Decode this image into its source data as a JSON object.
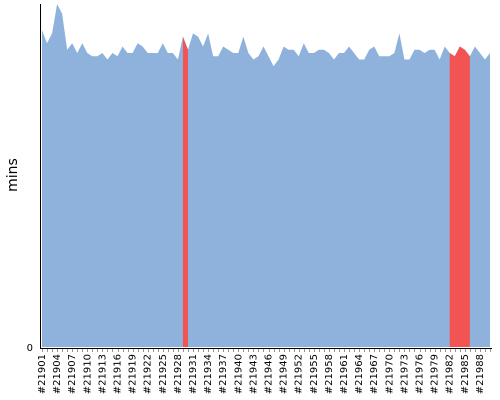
{
  "chart_data": {
    "type": "area",
    "title": "",
    "xlabel": "",
    "ylabel": "mins",
    "y_tick_labels": [
      "0"
    ],
    "x_tick_labels": [
      "#21901",
      "#21904",
      "#21907",
      "#21910",
      "#21913",
      "#21916",
      "#21919",
      "#21922",
      "#21925",
      "#21928",
      "#21931",
      "#21934",
      "#21937",
      "#21940",
      "#21943",
      "#21946",
      "#21949",
      "#21952",
      "#21955",
      "#21958",
      "#21961",
      "#21964",
      "#21967",
      "#21970",
      "#21973",
      "#21976",
      "#21979",
      "#21982",
      "#21985",
      "#21988"
    ],
    "x_start": 21901,
    "x_end": 21989,
    "ylim": [
      0,
      100
    ],
    "grid": false,
    "legend": "none",
    "colors": {
      "normal": "#8fb2dc",
      "highlight": "#f25454",
      "axis": "#000000"
    },
    "series": [
      {
        "values": [
          97,
          93,
          96,
          105,
          102,
          91,
          93,
          90,
          93,
          90,
          89,
          89,
          90,
          88,
          90,
          89,
          92,
          90,
          90,
          93,
          92,
          90,
          90,
          90,
          93,
          90,
          90,
          88,
          95,
          91,
          96,
          95,
          92,
          96,
          89,
          89,
          92,
          91,
          90,
          90,
          95,
          90,
          88,
          89,
          92,
          89,
          86,
          88,
          92,
          91,
          91,
          89,
          93,
          90,
          90,
          91,
          91,
          90,
          88,
          90,
          90,
          92,
          90,
          88,
          88,
          91,
          92,
          89,
          89,
          89,
          90,
          96,
          88,
          88,
          91,
          91,
          90,
          91,
          91,
          88,
          92,
          90,
          89,
          92,
          91,
          89,
          92,
          90,
          88,
          90
        ]
      }
    ],
    "highlights": [
      {
        "start": 21929,
        "end": 21930
      },
      {
        "start": 21982,
        "end": 21986
      }
    ]
  }
}
